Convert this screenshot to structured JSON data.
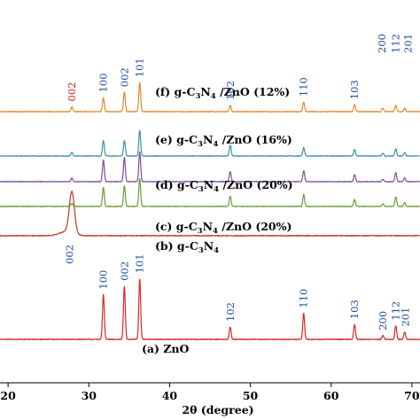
{
  "chart_data": {
    "type": "line",
    "xlabel": "2θ (degree)",
    "xlim": [
      19,
      71
    ],
    "x_ticks": [
      20,
      30,
      40,
      50,
      60,
      70
    ],
    "grid": false,
    "legend": "inline labels beside each trace",
    "series": [
      {
        "key": "zno",
        "label": "(a) ZnO",
        "color": "#d62728",
        "baseline": 0,
        "noise": 1.2,
        "peaks": [
          [
            31.8,
            72
          ],
          [
            34.4,
            86
          ],
          [
            36.3,
            98
          ],
          [
            47.5,
            20
          ],
          [
            56.6,
            42
          ],
          [
            62.9,
            24
          ],
          [
            66.4,
            6
          ],
          [
            68.0,
            22
          ],
          [
            69.1,
            12
          ]
        ],
        "peak_labels": [
          {
            "text": "100",
            "x": 31.8
          },
          {
            "text": "002",
            "x": 34.4
          },
          {
            "text": "101",
            "x": 36.3
          },
          {
            "text": "102",
            "x": 47.5
          },
          {
            "text": "110",
            "x": 56.6
          },
          {
            "text": "103",
            "x": 62.9
          },
          {
            "text": "200",
            "x": 66.4
          },
          {
            "text": "112",
            "x": 68.0
          },
          {
            "text": "201",
            "x": 69.2
          }
        ]
      },
      {
        "key": "gc3n4",
        "label": "(b) g-C3N4",
        "label_parts": [
          "(b) g-C",
          "3",
          "N",
          "4"
        ],
        "color": "#c0392b",
        "baseline": 0,
        "noise": 1.0,
        "peaks": [
          [
            27.9,
            52
          ],
          [
            27.2,
            5
          ]
        ],
        "peak_labels": [
          {
            "text": "002",
            "x": 27.6
          }
        ]
      },
      {
        "key": "c20",
        "label": "(c) g-C3N4 /ZnO (20%)",
        "label_parts": [
          "(c) g-C",
          "3",
          "N",
          "4",
          " /ZnO (20%)"
        ],
        "color": "#6b9a3a",
        "baseline": 0,
        "noise": 1.0,
        "peaks": [
          [
            27.9,
            5
          ],
          [
            31.8,
            30
          ],
          [
            34.4,
            32
          ],
          [
            36.3,
            44
          ],
          [
            47.5,
            16
          ],
          [
            56.6,
            19
          ],
          [
            62.9,
            11
          ],
          [
            66.4,
            4
          ],
          [
            68.0,
            15
          ],
          [
            69.1,
            6
          ]
        ]
      },
      {
        "key": "d20",
        "label": "(d) g-C3N4 /ZnO (20%)",
        "label_parts": [
          "(d) g-C",
          "3",
          "N",
          "4",
          " /ZnO (20%)"
        ],
        "color": "#7a4f9e",
        "baseline": 0,
        "noise": 1.0,
        "peaks": [
          [
            27.9,
            6
          ],
          [
            31.8,
            34
          ],
          [
            34.4,
            38
          ],
          [
            36.3,
            47
          ],
          [
            47.5,
            16
          ],
          [
            56.6,
            17
          ],
          [
            62.9,
            11
          ],
          [
            66.4,
            4
          ],
          [
            68.0,
            14
          ],
          [
            69.1,
            6
          ]
        ]
      },
      {
        "key": "e16",
        "label": "(e) g-C3N4 /ZnO (16%)",
        "label_parts": [
          "(e) g-C",
          "3",
          "N",
          "4",
          " /ZnO (16%)"
        ],
        "color": "#3d8fa8",
        "baseline": 0,
        "noise": 1.0,
        "peaks": [
          [
            27.9,
            6
          ],
          [
            31.8,
            24
          ],
          [
            34.4,
            24
          ],
          [
            36.3,
            40
          ],
          [
            47.5,
            17
          ],
          [
            56.6,
            13
          ],
          [
            62.9,
            10
          ],
          [
            66.4,
            4
          ],
          [
            68.0,
            11
          ],
          [
            69.1,
            5
          ]
        ]
      },
      {
        "key": "f12",
        "label": "(f) g-C3N4 /ZnO (12%)",
        "label_parts": [
          "(f) g-C",
          "3",
          "N",
          "4",
          " /ZnO (12%)"
        ],
        "color": "#e08a2e",
        "baseline": 0,
        "noise": 1.0,
        "peaks": [
          [
            27.9,
            7
          ],
          [
            31.8,
            20
          ],
          [
            34.4,
            28
          ],
          [
            36.3,
            42
          ],
          [
            47.5,
            9
          ],
          [
            56.6,
            14
          ],
          [
            62.9,
            10
          ],
          [
            66.4,
            5
          ],
          [
            68.0,
            9
          ],
          [
            69.1,
            5
          ]
        ],
        "peak_labels": [
          {
            "text": "002",
            "x": 27.9,
            "red": true
          },
          {
            "text": "100",
            "x": 31.8
          },
          {
            "text": "002",
            "x": 34.4
          },
          {
            "text": "101",
            "x": 36.3
          },
          {
            "text": "102",
            "x": 47.5
          },
          {
            "text": "110",
            "x": 56.6
          },
          {
            "text": "103",
            "x": 62.9
          },
          {
            "text": "200",
            "x": 66.3
          },
          {
            "text": "112",
            "x": 68.0
          },
          {
            "text": "201",
            "x": 69.5
          }
        ]
      }
    ]
  }
}
